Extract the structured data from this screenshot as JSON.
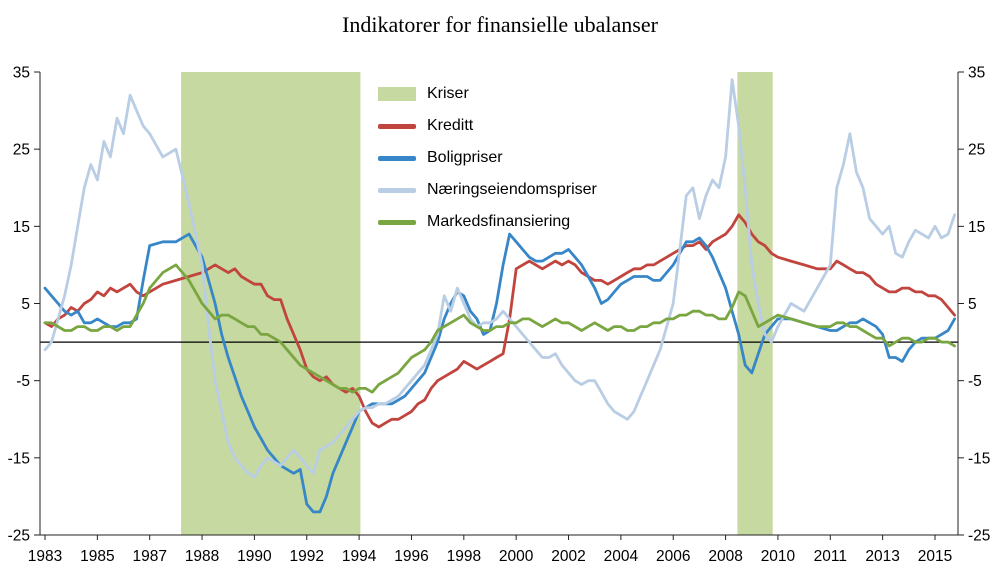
{
  "chart_data": {
    "type": "line",
    "title": "Indikatorer for finansielle ubalanser",
    "xlabel": "",
    "ylabel": "",
    "ylim": [
      -25,
      35
    ],
    "y_ticks": [
      35,
      25,
      15,
      5,
      -5,
      -15,
      -25
    ],
    "x_tick_labels": [
      "1983",
      "1985",
      "1987",
      "1988",
      "1990",
      "1992",
      "1994",
      "1996",
      "1998",
      "2000",
      "2002",
      "2004",
      "2006",
      "2008",
      "2010",
      "2011",
      "2013",
      "2015"
    ],
    "grid": false,
    "legend_position": "inside-top-left",
    "axis_color": "#222222",
    "zero_line": true,
    "zero_line_color": "#000000",
    "crisis_bands": {
      "label": "Kriser",
      "color": "#c6d9a0",
      "ranges": [
        {
          "from": 1987.6,
          "to": 1994.05
        },
        {
          "from": 2008.45,
          "to": 2009.8
        }
      ]
    },
    "legend": [
      {
        "key": "kriser",
        "label": "Kriser",
        "swatch": "band",
        "color": "#c6d9a0"
      },
      {
        "key": "kreditt",
        "label": "Kreditt",
        "swatch": "line",
        "color": "#c2443e"
      },
      {
        "key": "boligpriser",
        "label": "Boligpriser",
        "swatch": "line",
        "color": "#3787c8"
      },
      {
        "key": "naeringseiendomspriser",
        "label": "Næringseiendomspriser",
        "swatch": "line",
        "color": "#b9cde4"
      },
      {
        "key": "markedsfinansiering",
        "label": "Markedsfinansiering",
        "swatch": "line",
        "color": "#7aa642"
      }
    ],
    "series": [
      {
        "key": "kreditt",
        "name": "Kreditt",
        "color": "#c2443e",
        "width": 2.8,
        "start": 1983,
        "step": 0.25,
        "values": [
          2.5,
          2,
          3,
          3.5,
          4.5,
          4,
          5,
          5.5,
          6.5,
          6,
          7,
          6.5,
          7,
          7.5,
          6.5,
          6,
          6.5,
          7.5,
          8,
          8.5,
          9,
          9.5,
          10,
          9.5,
          9,
          9.5,
          8.5,
          8,
          7.5,
          7.5,
          6,
          5.5,
          5.5,
          3,
          1,
          -1,
          -3.5,
          -4.5,
          -5,
          -4.5,
          -5.5,
          -6,
          -6.5,
          -6,
          -7,
          -9,
          -10.5,
          -11,
          -10.5,
          -10,
          -10,
          -9.5,
          -9,
          -8,
          -7.5,
          -6,
          -5,
          -4.5,
          -4,
          -3.5,
          -2.5,
          -3,
          -3.5,
          -3,
          -2.5,
          -2,
          -1.5,
          3,
          9.5,
          10,
          10.5,
          10,
          9.5,
          10,
          10.5,
          10,
          10.5,
          10,
          9,
          8.5,
          8,
          8,
          7.5,
          8,
          8.5,
          9,
          9.5,
          9.5,
          10,
          10,
          10.5,
          11,
          11.5,
          12,
          12.5,
          12.5,
          13,
          12,
          13,
          13.5,
          14,
          15,
          16.5,
          15.5,
          14,
          13,
          12.5,
          11.5,
          11,
          10.5,
          10,
          9.5,
          9.5,
          10.5,
          10,
          9.5,
          9,
          9,
          8.5,
          7.5,
          7,
          6.5,
          6.5,
          7,
          7,
          6.5,
          6.5,
          6,
          6,
          5.5,
          4.5,
          3.5
        ]
      },
      {
        "key": "boligpriser",
        "name": "Boligpriser",
        "color": "#3787c8",
        "width": 2.8,
        "start": 1983,
        "step": 0.25,
        "values": [
          7,
          6,
          5,
          4,
          3.5,
          4,
          2.5,
          2.5,
          3,
          2.5,
          2,
          2,
          2.5,
          2.5,
          3,
          8,
          12.5,
          13,
          13,
          14,
          11,
          8,
          5,
          1,
          -2,
          -4.5,
          -7,
          -9,
          -11,
          -12.5,
          -14,
          -15,
          -16,
          -16.5,
          -17,
          -16.5,
          -21,
          -22,
          -22,
          -20,
          -17,
          -15,
          -13,
          -11,
          -9,
          -8.5,
          -8,
          -8,
          -8,
          -8,
          -7.5,
          -7,
          -6,
          -5,
          -4,
          -2,
          0,
          3,
          5,
          6.5,
          6,
          4,
          3,
          1,
          1.5,
          5,
          10,
          14,
          13,
          12,
          11,
          10.5,
          10.5,
          11,
          11.5,
          11.5,
          12,
          11,
          10,
          8.5,
          7,
          5,
          5.5,
          6.5,
          7.5,
          8,
          8.5,
          8.5,
          8.5,
          8,
          8,
          9,
          10,
          11.5,
          13,
          13,
          13.5,
          12.5,
          11,
          9,
          7,
          4,
          1,
          -3,
          -4,
          -1.5,
          1,
          2,
          3,
          3,
          2.5,
          2,
          1.5,
          1.5,
          2,
          2.5,
          2.5,
          3,
          2.5,
          2,
          1,
          -2,
          -2,
          -2.5,
          -1,
          0,
          0.5,
          0.5,
          0.5,
          1,
          1.5,
          3
        ]
      },
      {
        "key": "naeringseiendomspriser",
        "name": "Næringseiendomspriser",
        "color": "#b9cde4",
        "width": 2.8,
        "start": 1983,
        "step": 0.25,
        "values": [
          -1,
          0,
          3,
          6,
          10,
          15,
          20,
          23,
          21,
          26,
          24,
          29,
          27,
          32,
          30,
          28,
          27,
          24,
          25,
          18,
          10,
          2,
          -5,
          -9,
          -13,
          -15,
          -16,
          -17,
          -17.5,
          -16,
          -15,
          -15.5,
          -16,
          -15,
          -14,
          -15,
          -16,
          -17,
          -14,
          -13.5,
          -13,
          -12,
          -11,
          -10,
          -9,
          -8.5,
          -8.5,
          -8,
          -8,
          -7.5,
          -7,
          -6,
          -5,
          -4,
          -3,
          -1,
          1,
          6,
          4,
          7,
          5,
          3,
          2,
          2.5,
          2.5,
          3,
          4,
          3,
          2,
          1,
          0,
          -1,
          -2,
          -2,
          -1.5,
          -3,
          -4,
          -5,
          -5.5,
          -5,
          -5,
          -6.5,
          -8,
          -9,
          -9.5,
          -10,
          -9,
          -7,
          -5,
          -3,
          -1,
          2,
          5,
          12,
          19,
          20,
          16,
          19,
          21,
          20,
          24,
          34,
          28,
          20,
          10,
          5,
          1,
          0,
          2,
          5,
          4,
          7,
          10,
          20,
          23,
          27,
          22,
          20,
          16,
          15,
          14,
          15,
          11.5,
          11,
          13,
          14.5,
          14,
          13.5,
          15,
          13.5,
          14,
          16.5
        ]
      },
      {
        "key": "markedsfinansiering",
        "name": "Markedsfinansiering",
        "color": "#7aa642",
        "width": 2.8,
        "start": 1983,
        "step": 0.25,
        "values": [
          2.5,
          2.5,
          2,
          1.5,
          1.5,
          2,
          2,
          1.5,
          1.5,
          2,
          2,
          1.5,
          2,
          2,
          3.5,
          5,
          7,
          9,
          10,
          8,
          5,
          4,
          3,
          3.5,
          3.5,
          3,
          2.5,
          2,
          2,
          1,
          1,
          0.5,
          0,
          -1,
          -2,
          -3,
          -3.5,
          -4,
          -4.5,
          -5,
          -5.5,
          -6,
          -6,
          -6.5,
          -6,
          -6,
          -6.5,
          -5.5,
          -5,
          -4.5,
          -4,
          -3,
          -2,
          -1.5,
          -1,
          0,
          1.5,
          2,
          2.5,
          3,
          3.5,
          2.5,
          2,
          1.5,
          1.5,
          2,
          2,
          2.5,
          2.5,
          3,
          3,
          2.5,
          2,
          2.5,
          3,
          2.5,
          2.5,
          2,
          1.5,
          2,
          2.5,
          2,
          1.5,
          2,
          2,
          1.5,
          1.5,
          2,
          2,
          2.5,
          2.5,
          3,
          3,
          3.5,
          3.5,
          4,
          4,
          3.5,
          3.5,
          3,
          3,
          4.5,
          6.5,
          6,
          4,
          2,
          2.5,
          3,
          3.5,
          3,
          2.5,
          2,
          2,
          2.5,
          2.5,
          2,
          2,
          1.5,
          1,
          0.5,
          0.5,
          -0.5,
          0,
          0.5,
          0.5,
          0,
          0,
          0.5,
          0.5,
          0,
          0,
          -0.5
        ]
      }
    ]
  }
}
